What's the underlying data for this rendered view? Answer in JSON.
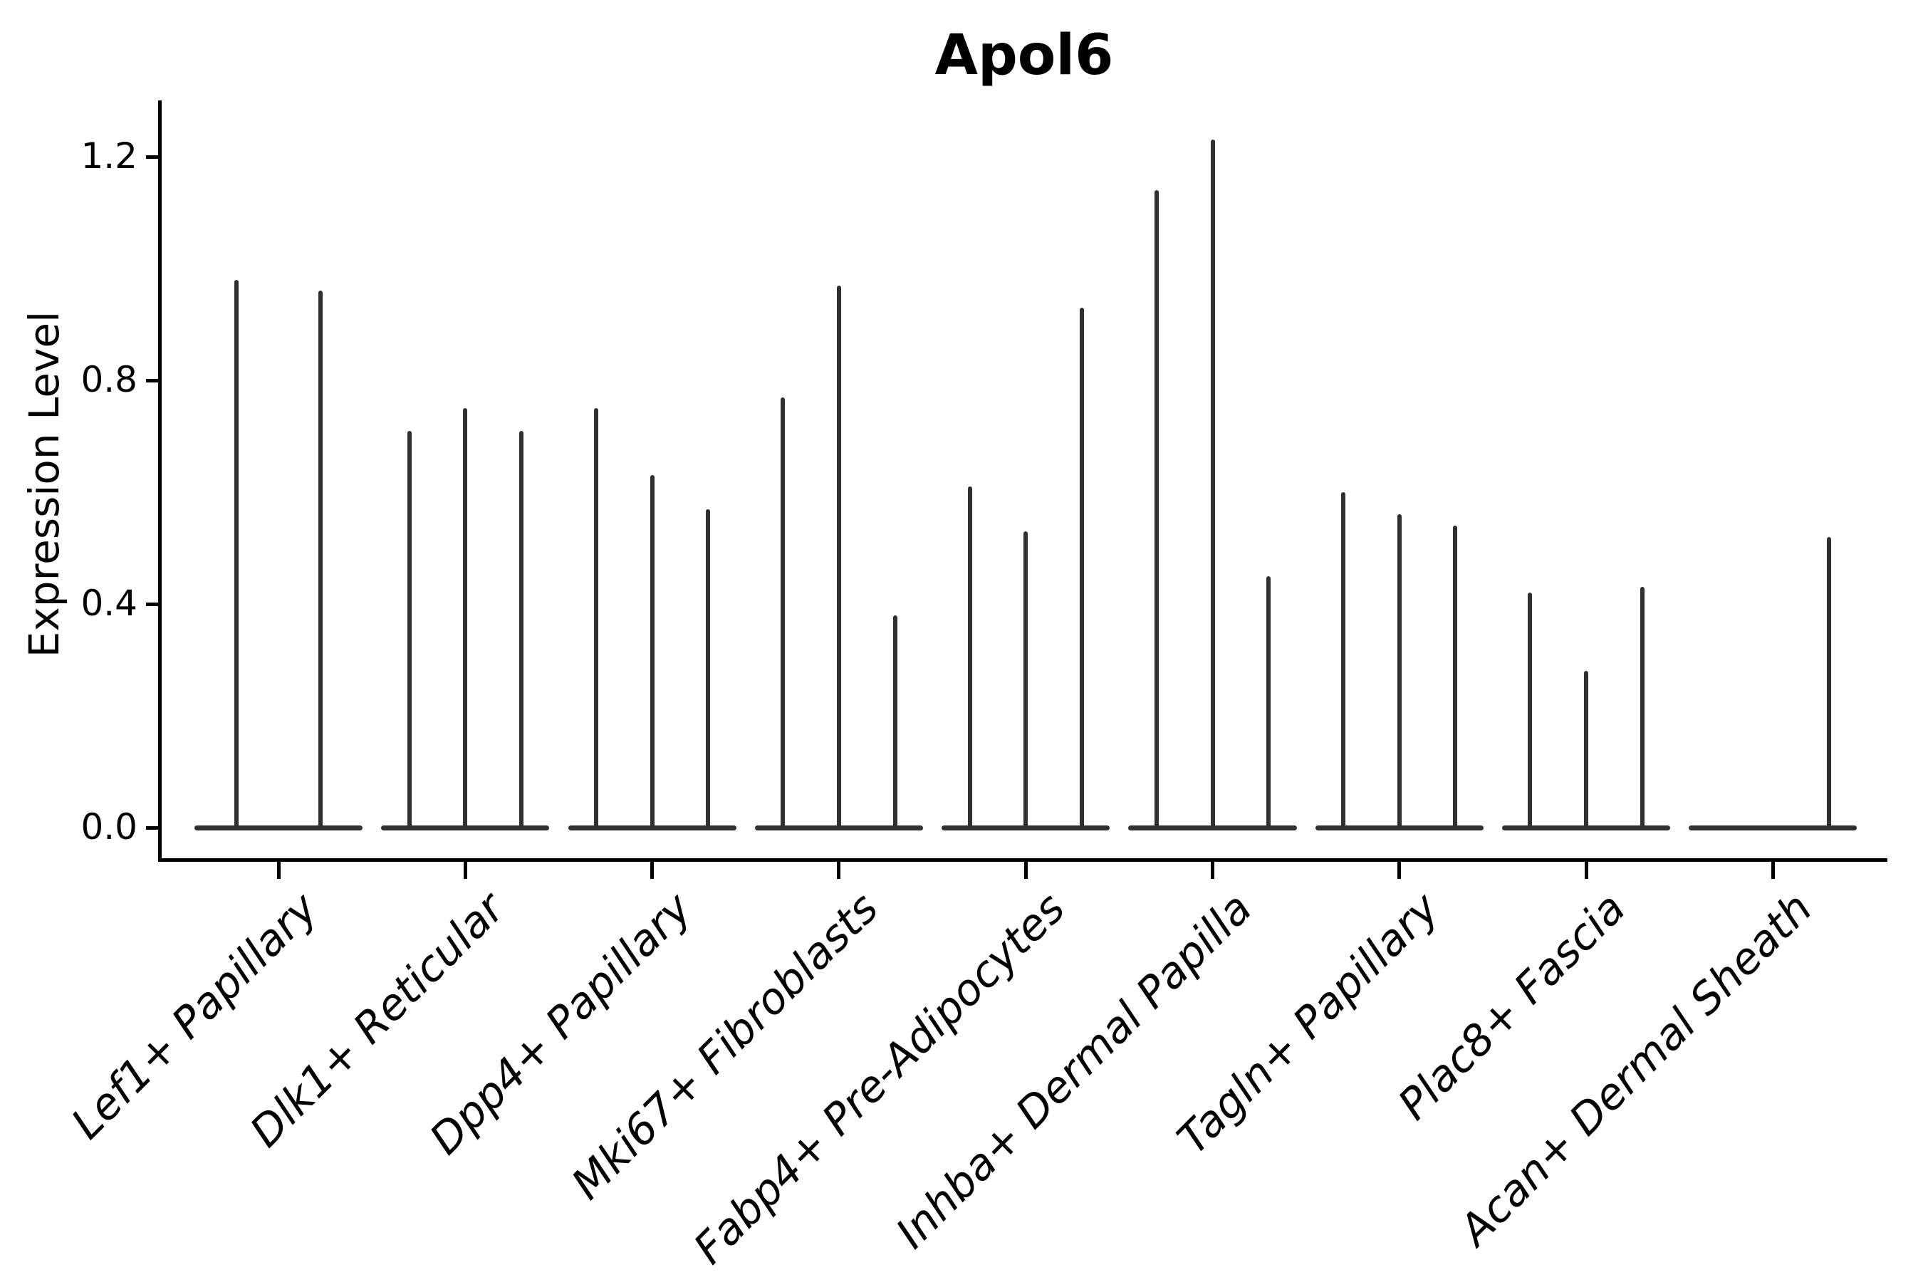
{
  "figure": {
    "background": "#ffffff"
  },
  "chart_data": {
    "type": "violin",
    "title": "Apol6",
    "ylabel": "Expression Level",
    "xlabel": "",
    "grid": false,
    "legend": false,
    "ytick_labels": [
      "0.0",
      "0.4",
      "0.8",
      "1.2"
    ],
    "ytick_values": [
      0.0,
      0.4,
      0.8,
      1.2
    ],
    "ylim": [
      -0.06,
      1.3
    ],
    "categories": [
      "Lef1+ Papillary",
      "Dlk1+ Reticular",
      "Dpp4+ Papillary",
      "Mki67+ Fibroblasts",
      "Fabp4+ Pre-Adipocytes",
      "Inhba+ Dermal Papilla",
      "Tagln+ Papillary",
      "Plac8+ Fascia",
      "Acan+ Dermal Sheath"
    ],
    "groups": [
      {
        "category": "Lef1+ Papillary",
        "violin_max_values": [
          0.98,
          0.96
        ]
      },
      {
        "category": "Dlk1+ Reticular",
        "violin_max_values": [
          0.71,
          0.75,
          0.71
        ]
      },
      {
        "category": "Dpp4+ Papillary",
        "violin_max_values": [
          0.75,
          0.63,
          0.57
        ]
      },
      {
        "category": "Mki67+ Fibroblasts",
        "violin_max_values": [
          0.77,
          0.97,
          0.38
        ]
      },
      {
        "category": "Fabp4+ Pre-Adipocytes",
        "violin_max_values": [
          0.61,
          0.53,
          0.93
        ]
      },
      {
        "category": "Inhba+ Dermal Papilla",
        "violin_max_values": [
          1.14,
          1.23,
          0.45
        ]
      },
      {
        "category": "Tagln+ Papillary",
        "violin_max_values": [
          0.6,
          0.56,
          0.54
        ]
      },
      {
        "category": "Plac8+ Fascia",
        "violin_max_values": [
          0.42,
          0.28,
          0.43
        ]
      },
      {
        "category": "Acan+ Dermal Sheath",
        "violin_max_values": [
          0,
          0,
          0.52
        ]
      }
    ],
    "colors": {
      "violin": "#303030",
      "axis": "#000000",
      "text": "#000000",
      "background": "#ffffff"
    }
  }
}
